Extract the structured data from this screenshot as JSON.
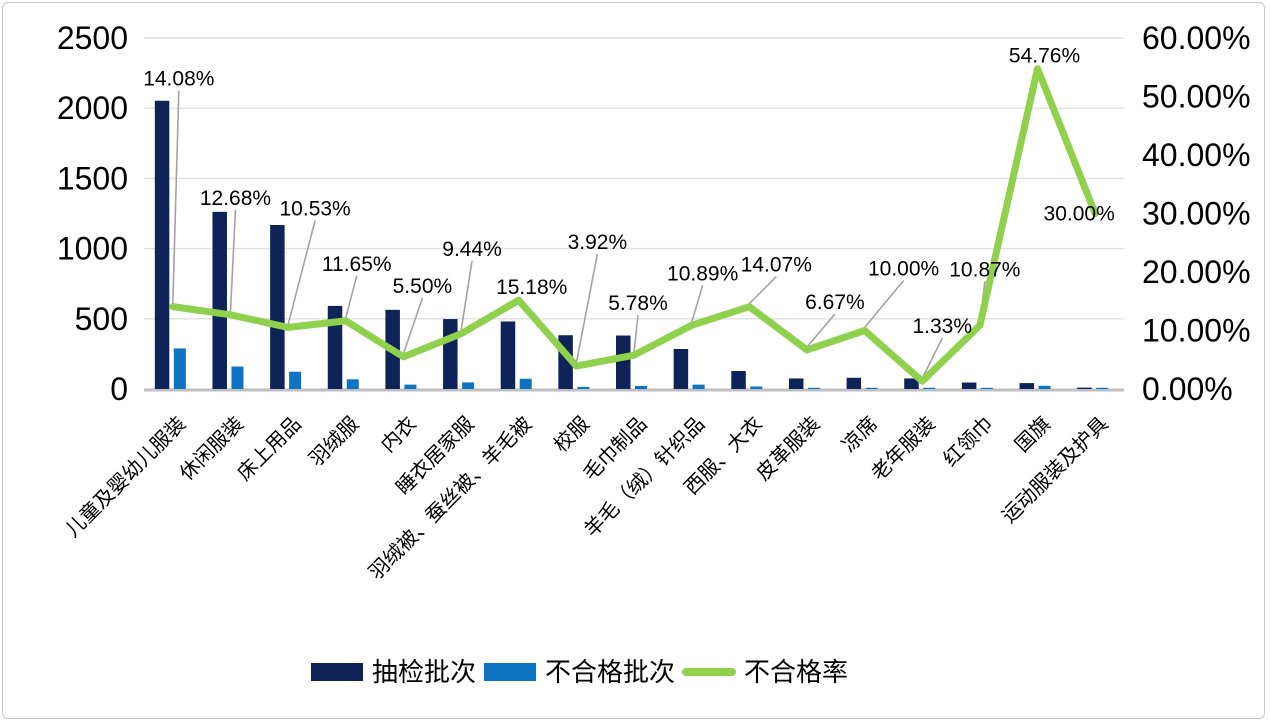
{
  "chart_data": {
    "type": "combo-bar-line",
    "title": "",
    "categories": [
      "儿童及婴幼儿服装",
      "休闲服装",
      "床上用品",
      "羽绒服",
      "内衣",
      "睡衣居家服",
      "羽绒被、蚕丝被、羊毛被",
      "校服",
      "毛巾制品",
      "羊毛（绒）针织品",
      "西服、大衣",
      "皮革服装",
      "凉席",
      "老年服装",
      "红领巾",
      "国旗",
      "运动服装及护具"
    ],
    "series": [
      {
        "name": "抽检批次",
        "chart": "bar",
        "axis": "left",
        "color": "#0e2458",
        "values": [
          2053,
          1262,
          1168,
          592,
          564,
          498,
          481,
          383,
          381,
          285,
          128,
          75,
          80,
          75,
          46,
          42,
          10
        ]
      },
      {
        "name": "不合格批次",
        "chart": "bar",
        "axis": "left",
        "color": "#0d74c4",
        "values": [
          289,
          160,
          123,
          69,
          31,
          47,
          73,
          15,
          22,
          31,
          18,
          5,
          8,
          1,
          5,
          23,
          3
        ]
      },
      {
        "name": "不合格率",
        "chart": "line",
        "axis": "right",
        "color": "#8fd04d",
        "values": [
          14.08,
          12.68,
          10.53,
          11.65,
          5.5,
          9.44,
          15.18,
          3.92,
          5.78,
          10.89,
          14.07,
          6.67,
          10.0,
          1.33,
          10.87,
          54.76,
          30.0
        ],
        "point_labels": [
          "14.08%",
          "12.68%",
          "10.53%",
          "11.65%",
          "5.50%",
          "9.44%",
          "15.18%",
          "3.92%",
          "5.78%",
          "10.89%",
          "14.07%",
          "6.67%",
          "10.00%",
          "1.33%",
          "10.87%",
          "54.76%",
          "30.00%"
        ]
      }
    ],
    "left_axis": {
      "min": 0,
      "max": 2500,
      "step": 500,
      "tick_labels": [
        "0",
        "500",
        "1000",
        "1500",
        "2000",
        "2500"
      ]
    },
    "right_axis": {
      "min": 0,
      "max": 60,
      "step": 10,
      "tick_labels": [
        "0.00%",
        "10.00%",
        "20.00%",
        "30.00%",
        "40.00%",
        "50.00%",
        "60.00%"
      ]
    },
    "grid": true,
    "legend": {
      "position": "bottom",
      "items": [
        "抽检批次",
        "不合格批次",
        "不合格率"
      ]
    },
    "style": {
      "grid_color": "#e0e0e0",
      "baseline_color": "#bfbfbf",
      "leader_color": "#a3a3a3",
      "text_color": "#000000",
      "frame_border": "#c6c6c6"
    },
    "label_offsets": [
      [
        6,
        -228,
        1
      ],
      [
        5,
        -117,
        1
      ],
      [
        27,
        -119,
        1
      ],
      [
        11,
        -57,
        1
      ],
      [
        19,
        -71,
        1
      ],
      [
        11,
        -85,
        1
      ],
      [
        13,
        -13,
        0
      ],
      [
        21,
        -124,
        1
      ],
      [
        4,
        -52,
        1
      ],
      [
        11,
        -52,
        1
      ],
      [
        27,
        -42,
        1
      ],
      [
        28,
        -48,
        1
      ],
      [
        39,
        -62,
        1
      ],
      [
        20,
        -55,
        1
      ],
      [
        5,
        -56,
        1
      ],
      [
        7,
        -13,
        0
      ],
      [
        -16,
        0,
        0
      ]
    ]
  }
}
